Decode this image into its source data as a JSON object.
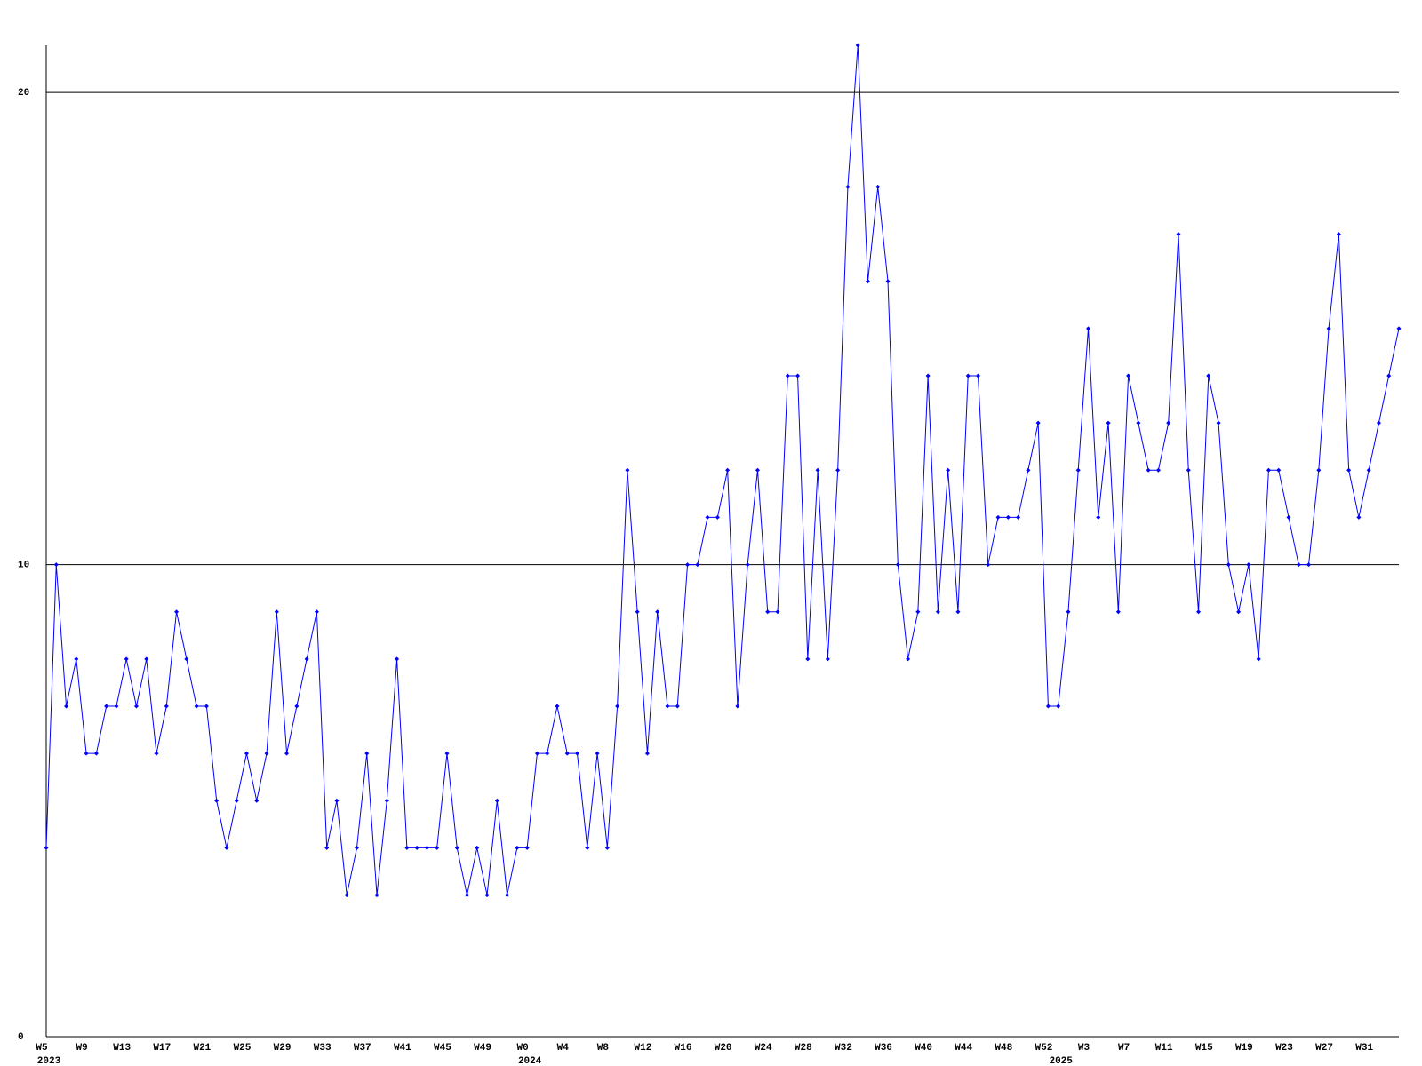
{
  "chart_data": {
    "type": "line",
    "categories": [
      "W5",
      null,
      null,
      null,
      "W9",
      null,
      null,
      null,
      "W13",
      null,
      null,
      null,
      "W17",
      null,
      null,
      null,
      "W21",
      null,
      null,
      null,
      "W25",
      null,
      null,
      null,
      "W29",
      null,
      null,
      null,
      "W33",
      null,
      null,
      null,
      "W37",
      null,
      null,
      null,
      "W41",
      null,
      null,
      null,
      "W45",
      null,
      null,
      null,
      "W49",
      null,
      null,
      null,
      "W0",
      null,
      null,
      null,
      "W4",
      null,
      null,
      null,
      "W8",
      null,
      null,
      null,
      "W12",
      null,
      null,
      null,
      "W16",
      null,
      null,
      null,
      "W20",
      null,
      null,
      null,
      "W24",
      null,
      null,
      null,
      "W28",
      null,
      null,
      null,
      "W32",
      null,
      null,
      null,
      "W36",
      null,
      null,
      null,
      "W40",
      null,
      null,
      null,
      "W44",
      null,
      null,
      null,
      "W48",
      null,
      null,
      null,
      "W52",
      null,
      null,
      null,
      "W3",
      null,
      null,
      null,
      "W7",
      null,
      null,
      null,
      "W11",
      null,
      null,
      null,
      "W15",
      null,
      null,
      null,
      "W19",
      null,
      null,
      null,
      "W23",
      null,
      null,
      null,
      "W27",
      null,
      null,
      null,
      "W31",
      null,
      null,
      null
    ],
    "year_labels": [
      "2023",
      null,
      null,
      null,
      null,
      null,
      null,
      null,
      null,
      null,
      null,
      null,
      null,
      null,
      null,
      null,
      null,
      null,
      null,
      null,
      null,
      null,
      null,
      null,
      null,
      null,
      null,
      null,
      null,
      null,
      null,
      null,
      null,
      null,
      null,
      null,
      null,
      null,
      null,
      null,
      null,
      null,
      null,
      null,
      null,
      null,
      null,
      null,
      "2024",
      null,
      null,
      null,
      null,
      null,
      null,
      null,
      null,
      null,
      null,
      null,
      null,
      null,
      null,
      null,
      null,
      null,
      null,
      null,
      null,
      null,
      null,
      null,
      null,
      null,
      null,
      null,
      null,
      null,
      null,
      null,
      null,
      null,
      null,
      null,
      null,
      null,
      null,
      null,
      null,
      null,
      null,
      null,
      null,
      null,
      null,
      null,
      null,
      null,
      null,
      null,
      null,
      "2025",
      null,
      null,
      null,
      null,
      null,
      null,
      null,
      null,
      null,
      null,
      null,
      null,
      null,
      null,
      null,
      null,
      null,
      null,
      null,
      null,
      null,
      null,
      null,
      null,
      null,
      null,
      null,
      null,
      null,
      null,
      null,
      null,
      null,
      null
    ],
    "series": [
      {
        "color": "#0000ff",
        "values": [
          4,
          10,
          7,
          8,
          6,
          6,
          7,
          7,
          8,
          7,
          8,
          6,
          7,
          9,
          8,
          7,
          7,
          5,
          4,
          5,
          6,
          5,
          6,
          9,
          6,
          7,
          8,
          9,
          4,
          5,
          3,
          4,
          6,
          3,
          5,
          8,
          4,
          4,
          4,
          4,
          6,
          4,
          3,
          4,
          3,
          5,
          3,
          4,
          4,
          6,
          6,
          7,
          6,
          6,
          4,
          6,
          4,
          7,
          12,
          9,
          6,
          9,
          7,
          7,
          10,
          10,
          11,
          11,
          12,
          7,
          10,
          12,
          9,
          9,
          14,
          14,
          8,
          12,
          8,
          12,
          18,
          21,
          16,
          18,
          16,
          10,
          8,
          9,
          14,
          9,
          12,
          9,
          14,
          14,
          10,
          11,
          11,
          11,
          12,
          13,
          7,
          7,
          9,
          12,
          15,
          11,
          13,
          9,
          14,
          13,
          12,
          12,
          13,
          17,
          12,
          9,
          14,
          13,
          10,
          9,
          10,
          8,
          12,
          12,
          11,
          10,
          10,
          12,
          15,
          17,
          12,
          11,
          12,
          13,
          14,
          15
        ]
      }
    ],
    "ylim": [
      0,
      21
    ],
    "yticks": [
      0,
      10,
      20
    ],
    "grid": true
  }
}
